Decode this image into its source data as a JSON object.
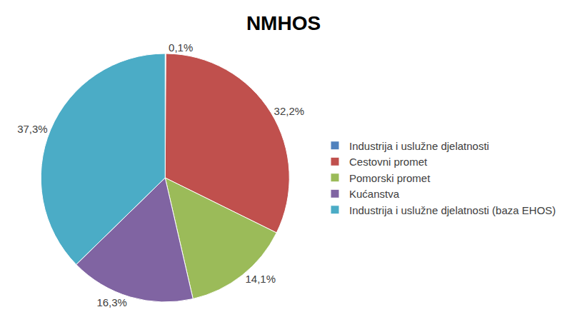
{
  "chart_data": {
    "type": "pie",
    "title": "NMHOS",
    "categories": [
      "Industrija i uslužne djelatnosti",
      "Cestovni promet",
      "Pomorski promet",
      "Kućanstva",
      "Industrija i uslužne djelatnosti (baza EHOS)"
    ],
    "values": [
      0.1,
      32.2,
      14.1,
      16.3,
      37.3
    ],
    "value_labels": [
      "0,1%",
      "32,2%",
      "14,1%",
      "16,3%",
      "37,3%"
    ],
    "colors": [
      "#4F81BD",
      "#C0504D",
      "#9BBB59",
      "#8064A2",
      "#4BACC6"
    ],
    "data_labels": true,
    "legend": "right"
  }
}
